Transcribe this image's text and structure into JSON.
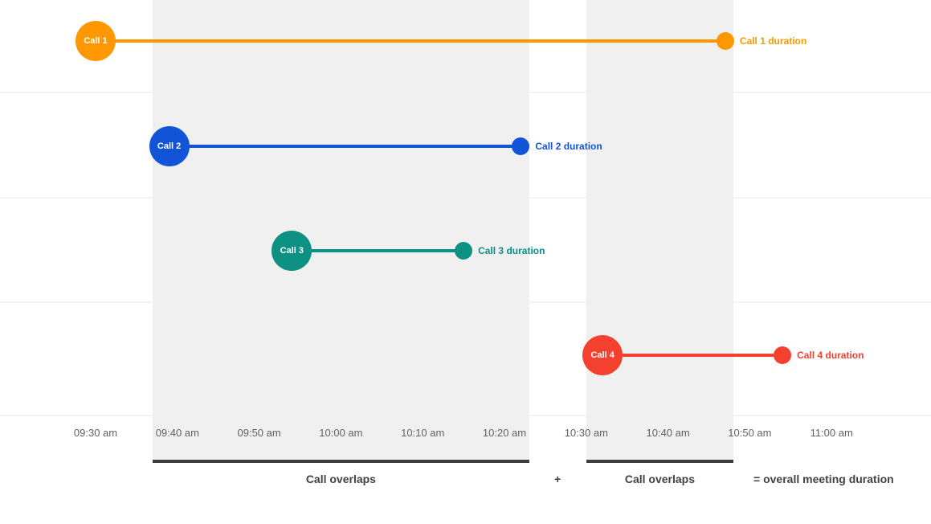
{
  "chart_data": {
    "type": "timeline",
    "title": "",
    "x_axis": {
      "tick_labels": [
        "09:30 am",
        "09:40 am",
        "09:50 am",
        "10:00 am",
        "10:10 am",
        "10:20 am",
        "10:30 am",
        "10:40 am",
        "10:50 am",
        "11:00 am"
      ]
    },
    "calls": [
      {
        "name": "Call 1",
        "start": "09:30 am",
        "end": "10:47 am",
        "color": "#FF9800",
        "duration_label": "Call 1 duration"
      },
      {
        "name": "Call 2",
        "start": "09:39 am",
        "end": "10:22 am",
        "color": "#1254D8",
        "duration_label": "Call 2 duration"
      },
      {
        "name": "Call 3",
        "start": "09:54 am",
        "end": "10:15 am",
        "color": "#0C9184",
        "duration_label": "Call 3 duration"
      },
      {
        "name": "Call 4",
        "start": "10:32 am",
        "end": "10:54 am",
        "color": "#F4402F",
        "duration_label": "Call 4 duration"
      }
    ],
    "overlap_bands": [
      {
        "start": "09:37 am",
        "end": "10:23 am"
      },
      {
        "start": "10:30 am",
        "end": "10:48 am"
      }
    ],
    "annotations": {
      "overlap_left": "Call overlaps",
      "plus": "+",
      "overlap_right": "Call overlaps",
      "equals": "= overall meeting duration"
    },
    "colors": {
      "band": "#F0F0F0",
      "band_underline": "#3D3D3D",
      "axis_text": "#616161",
      "caption_text": "#424242",
      "gridline": "#F3F3F3"
    },
    "legend_position": "none",
    "grid": "horizontal-faint"
  }
}
